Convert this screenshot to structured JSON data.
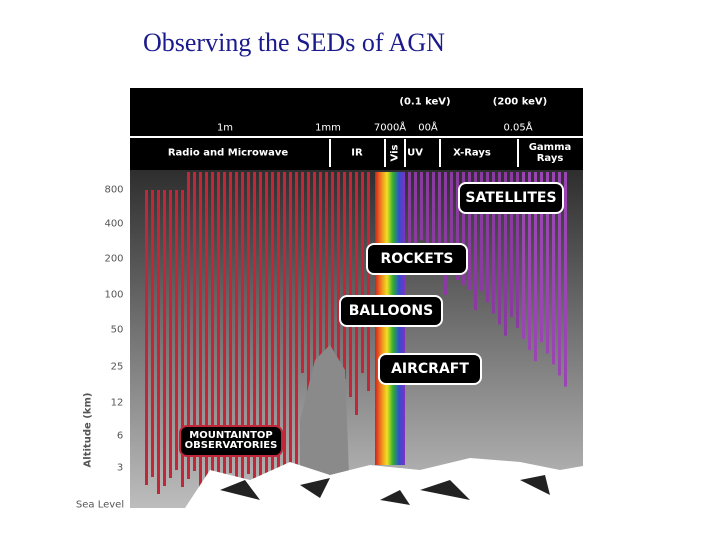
{
  "title": "Observing the SEDs of AGN",
  "diagram": {
    "energy_labels": [
      "(0.1 keV)",
      "(200 keV)"
    ],
    "wavelength_labels": [
      "1m",
      "1mm",
      "7000Å",
      "00Å",
      "0.05Å"
    ],
    "bands": [
      "Radio and Microwave",
      "IR",
      "Vis",
      "UV",
      "X-Rays",
      "Gamma Rays"
    ],
    "altitude_axis": {
      "label": "Altitude (km)",
      "ticks": [
        "800",
        "400",
        "200",
        "100",
        "50",
        "25",
        "12",
        "6",
        "3",
        "Sea Level"
      ]
    },
    "platforms": [
      "SATELLITES",
      "ROCKETS",
      "BALLOONS",
      "AIRCRAFT",
      "MOUNTAINTOP OBSERVATORIES"
    ]
  }
}
